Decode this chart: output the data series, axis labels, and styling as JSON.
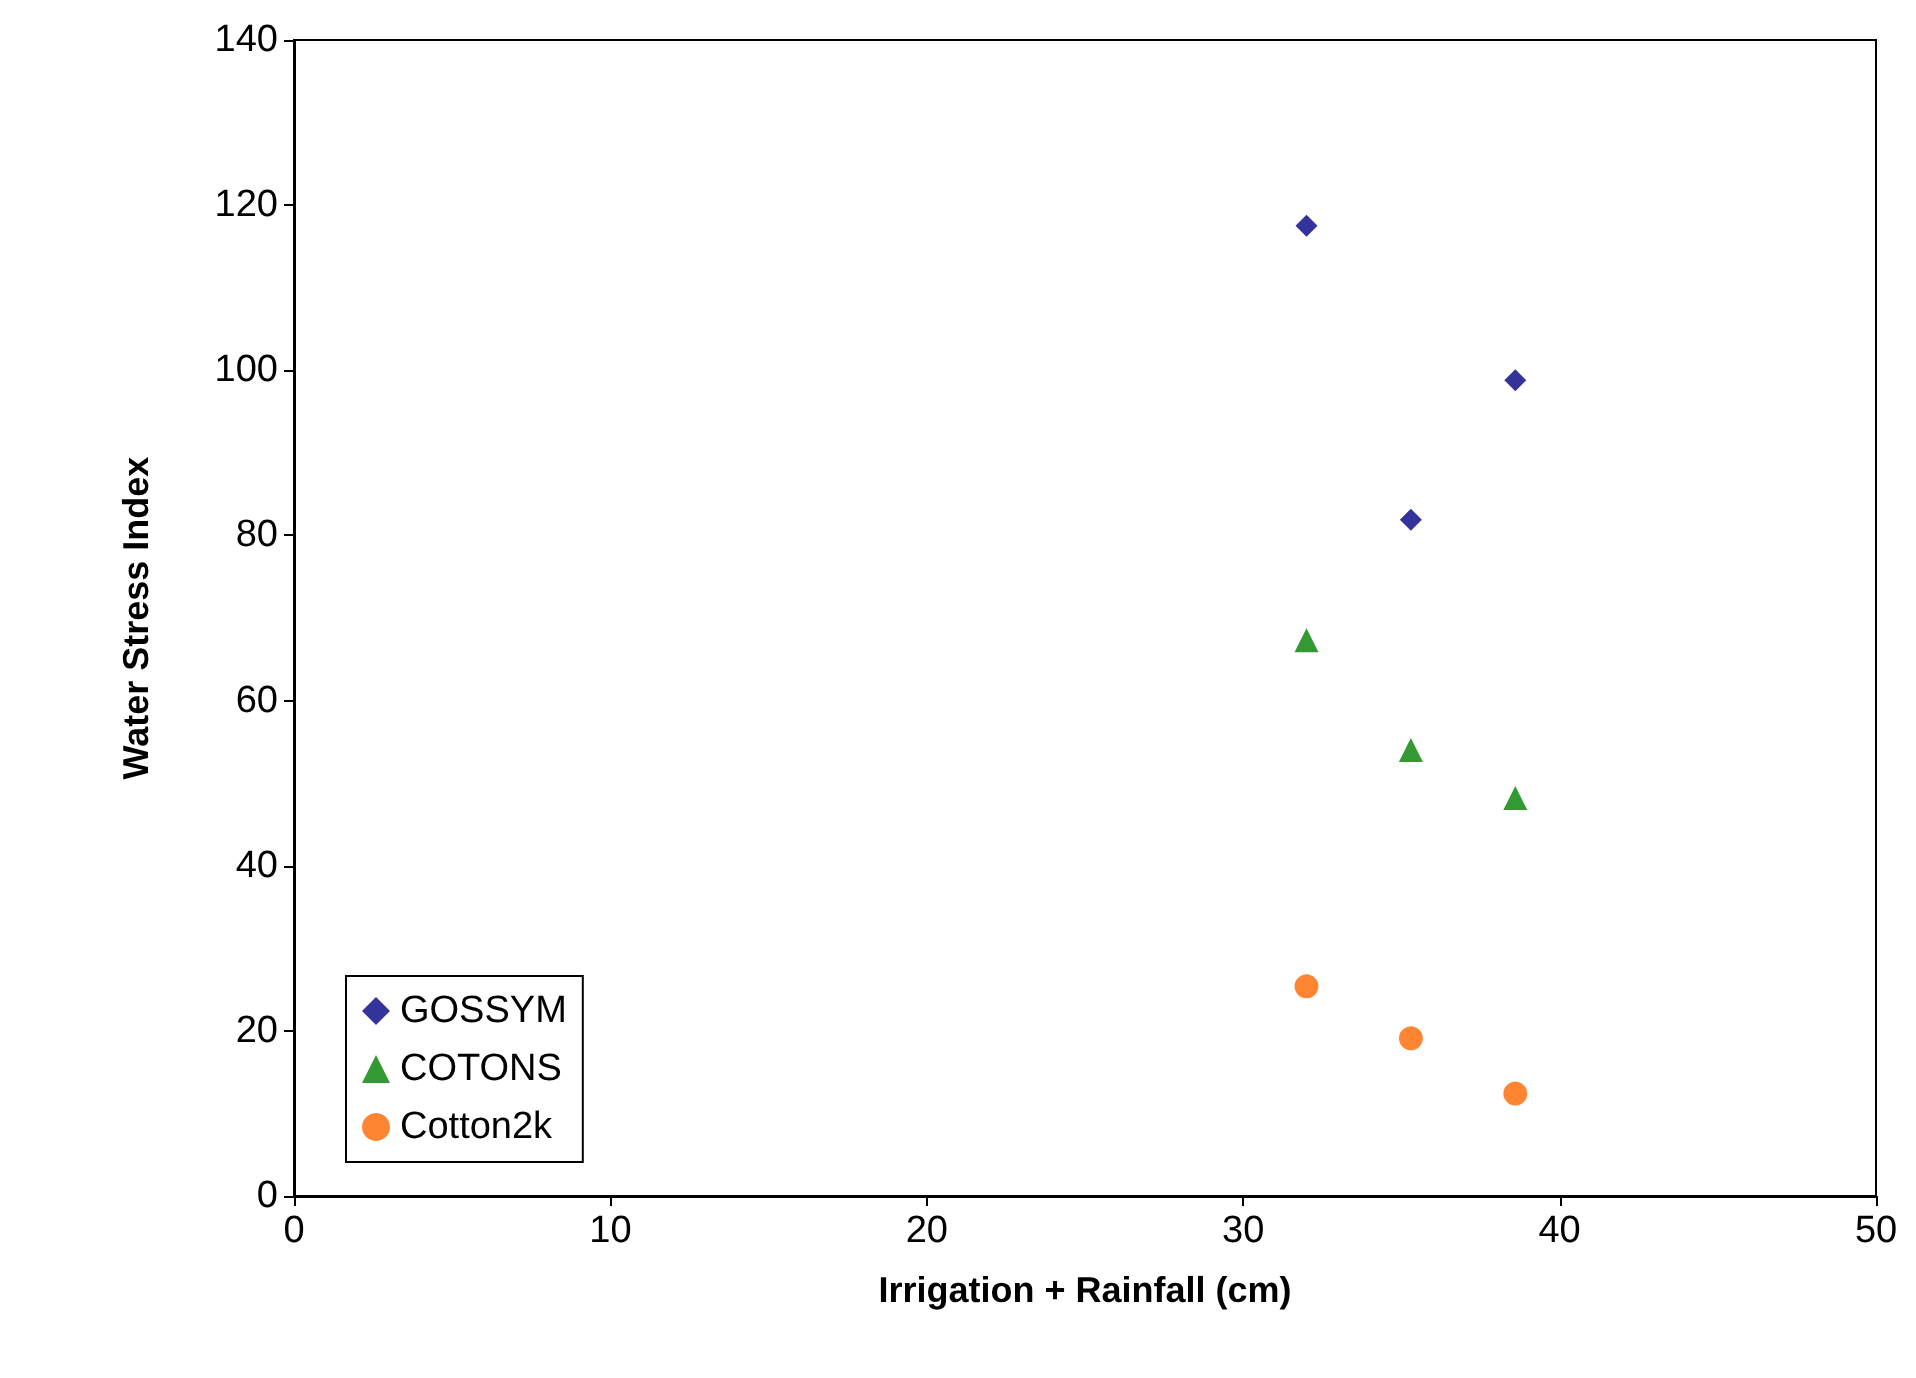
{
  "chart_data": {
    "type": "scatter",
    "xlabel": "Irrigation + Rainfall (cm)",
    "ylabel": "Water Stress Index",
    "x": [
      32.0,
      35.3,
      38.6
    ],
    "series": [
      {
        "name": "GOSSYM",
        "color": "#000080",
        "marker": "diamond",
        "values": [
          117.5,
          81.9,
          98.8
        ]
      },
      {
        "name": "COTONS",
        "color": "#008000",
        "marker": "triangle",
        "values": [
          67.3,
          54.0,
          48.2
        ]
      },
      {
        "name": "Cotton2k",
        "color": "#ff6600",
        "marker": "circle",
        "values": [
          25.4,
          19.1,
          12.4
        ]
      }
    ],
    "xlim": [
      0,
      50
    ],
    "xticks": [
      0,
      10,
      20,
      30,
      40,
      50
    ],
    "ylim": [
      0,
      140
    ],
    "yticks": [
      0,
      20,
      40,
      60,
      80,
      100,
      120,
      140
    ],
    "grid": false,
    "legend": "bottom left"
  }
}
